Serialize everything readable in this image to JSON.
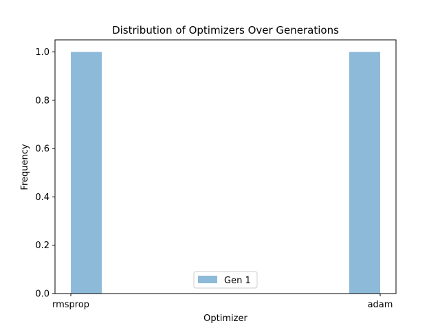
{
  "chart_data": {
    "type": "bar",
    "title": "Distribution of Optimizers Over Generations",
    "xlabel": "Optimizer",
    "ylabel": "Frequency",
    "categories": [
      "rmsprop",
      "adam"
    ],
    "series": [
      {
        "name": "Gen 1",
        "values": [
          1.0,
          1.0
        ],
        "color": "#8ebad9"
      }
    ],
    "ylim": [
      0,
      1.05
    ],
    "yticks": [
      "0.0",
      "0.2",
      "0.4",
      "0.6",
      "0.8",
      "1.0"
    ],
    "grid": false,
    "legend_position": "lower center"
  }
}
